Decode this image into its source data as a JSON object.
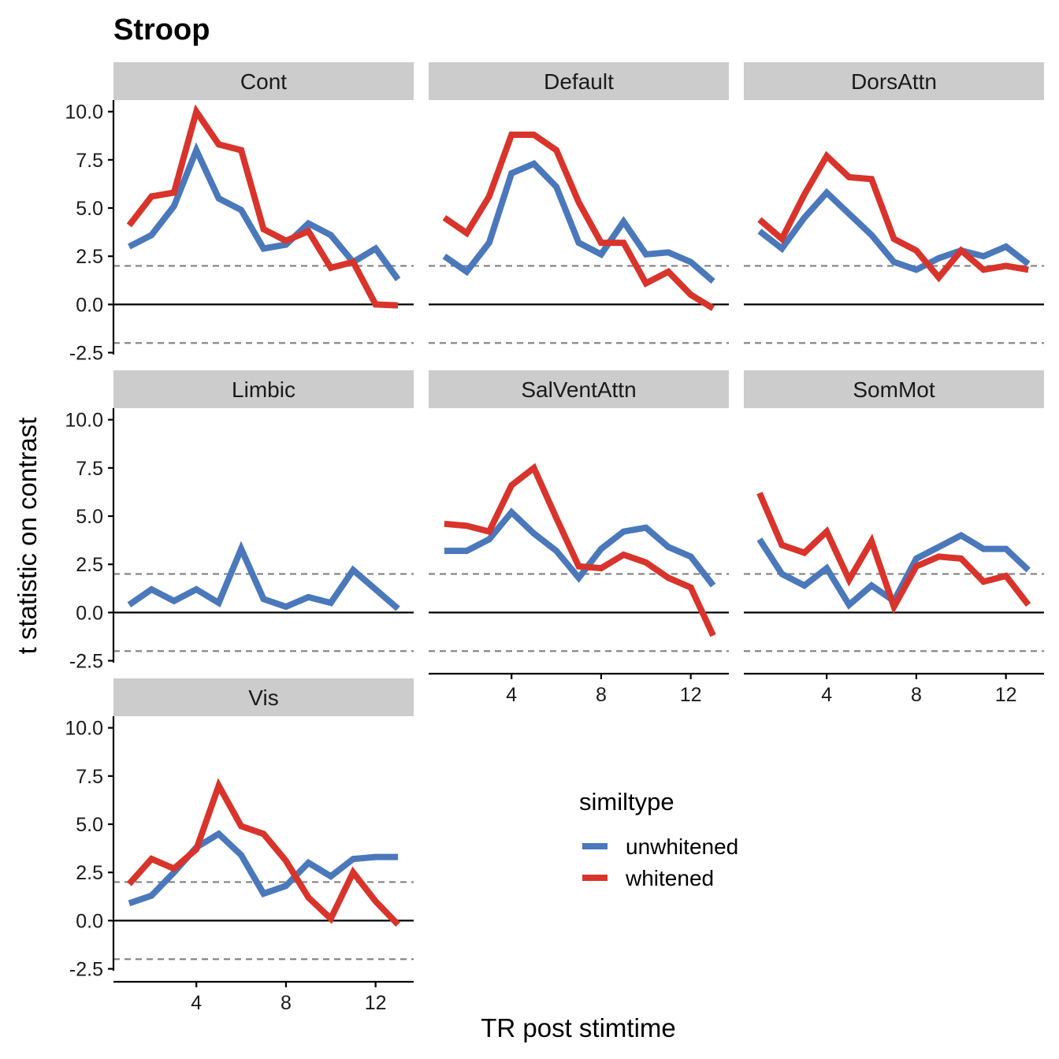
{
  "chart_data": {
    "type": "line",
    "title": "Stroop",
    "xlabel": "TR post stimtime",
    "ylabel": "t statistic on contrast",
    "xlim": [
      0.3,
      13.7
    ],
    "ylim": [
      -2.6,
      10.6
    ],
    "x_ticks": [
      4,
      8,
      12
    ],
    "y_ticks": [
      -2.5,
      0.0,
      2.5,
      5.0,
      7.5,
      10.0
    ],
    "y_tick_labels": [
      "-2.5",
      "0.0",
      "2.5",
      "5.0",
      "7.5",
      "10.0"
    ],
    "reference_lines": {
      "solid": 0,
      "dashed": [
        2,
        -2
      ]
    },
    "legend": {
      "title": "similtype",
      "position": "bottom-right"
    },
    "colors": {
      "unwhitened": "#4a78bb",
      "whitened": "#d8342b",
      "strip_bg": "#cccccc",
      "dashed": "#808080"
    },
    "x": [
      1,
      2,
      3,
      4,
      5,
      6,
      7,
      8,
      9,
      10,
      11,
      12,
      13
    ],
    "series_names": [
      "unwhitened",
      "whitened"
    ],
    "panels": [
      {
        "name": "Cont",
        "unwhitened": [
          3.0,
          3.6,
          5.1,
          8.0,
          5.5,
          4.9,
          2.9,
          3.1,
          4.2,
          3.6,
          2.2,
          2.9,
          1.3
        ],
        "whitened": [
          4.1,
          5.6,
          5.8,
          10.0,
          8.3,
          8.0,
          3.9,
          3.3,
          3.8,
          1.9,
          2.2,
          0.0,
          -0.05
        ]
      },
      {
        "name": "Default",
        "unwhitened": [
          2.5,
          1.7,
          3.2,
          6.8,
          7.3,
          6.1,
          3.2,
          2.6,
          4.3,
          2.6,
          2.7,
          2.2,
          1.2
        ],
        "whitened": [
          4.5,
          3.7,
          5.6,
          8.8,
          8.8,
          8.0,
          5.3,
          3.2,
          3.2,
          1.1,
          1.7,
          0.5,
          -0.2
        ]
      },
      {
        "name": "DorsAttn",
        "unwhitened": [
          3.8,
          2.9,
          4.5,
          5.8,
          4.7,
          3.6,
          2.2,
          1.8,
          2.4,
          2.8,
          2.5,
          3.0,
          2.1
        ],
        "whitened": [
          4.4,
          3.4,
          5.7,
          7.7,
          6.6,
          6.5,
          3.4,
          2.8,
          1.4,
          2.8,
          1.8,
          2.0,
          1.8
        ]
      },
      {
        "name": "Limbic",
        "unwhitened": [
          0.4,
          1.2,
          0.6,
          1.2,
          0.5,
          3.3,
          0.7,
          0.3,
          0.8,
          0.5,
          2.2,
          1.2,
          0.2
        ]
      },
      {
        "name": "SalVentAttn",
        "unwhitened": [
          3.2,
          3.2,
          3.8,
          5.2,
          4.1,
          3.2,
          1.8,
          3.3,
          4.2,
          4.4,
          3.4,
          2.9,
          1.4
        ],
        "whitened": [
          4.6,
          4.5,
          4.2,
          6.6,
          7.5,
          4.9,
          2.4,
          2.3,
          3.0,
          2.6,
          1.8,
          1.3,
          -1.2
        ]
      },
      {
        "name": "SomMot",
        "unwhitened": [
          3.8,
          2.0,
          1.4,
          2.3,
          0.4,
          1.4,
          0.6,
          2.8,
          3.4,
          4.0,
          3.3,
          3.3,
          2.2
        ],
        "whitened": [
          6.2,
          3.5,
          3.1,
          4.2,
          1.7,
          3.7,
          0.3,
          2.4,
          2.9,
          2.8,
          1.6,
          1.9,
          0.4
        ]
      },
      {
        "name": "Vis",
        "unwhitened": [
          0.9,
          1.3,
          2.5,
          3.8,
          4.5,
          3.4,
          1.4,
          1.8,
          3.0,
          2.3,
          3.2,
          3.3,
          3.3
        ],
        "whitened": [
          1.9,
          3.2,
          2.7,
          3.7,
          7.0,
          4.9,
          4.5,
          3.1,
          1.2,
          0.1,
          2.5,
          1.0,
          -0.2
        ]
      }
    ]
  }
}
